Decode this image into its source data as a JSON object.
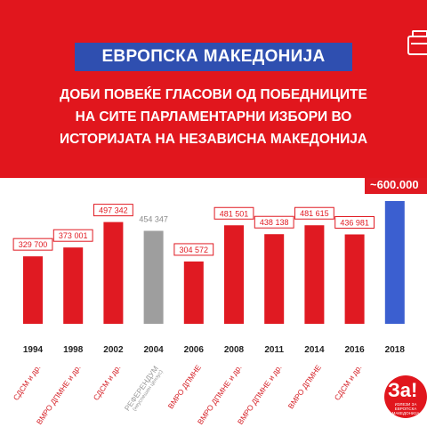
{
  "header": {
    "headline": "ЕВРОПСКА МАКЕДОНИЈА",
    "subtitle_lines": [
      "ДОБИ ПОВЕЌЕ ГЛАСОВИ ОД ПОБЕДНИЦИТЕ",
      "НА СИТЕ ПАРЛАМЕНТАРНИ ИЗБОРИ ВО",
      "ИСТОРИЈАТА НА НЕЗАВИСНА МАКЕДОНИЈА"
    ],
    "icon": "ballot-card-icon"
  },
  "colors": {
    "banner": "#e1161d",
    "headline_box": "#2f4fb0",
    "bar_red": "#e01a22",
    "bar_grey": "#9e9e9e",
    "bar_blue": "#3b5fd0"
  },
  "chart_data": {
    "type": "bar",
    "categories": [
      "1994",
      "1998",
      "2002",
      "2004",
      "2006",
      "2008",
      "2011",
      "2014",
      "2016",
      "2018"
    ],
    "values": [
      329700,
      373001,
      497342,
      454347,
      304572,
      481501,
      438138,
      481615,
      436981,
      600000
    ],
    "value_labels": [
      "329 700",
      "373 001",
      "497 342",
      "454 347",
      "304 572",
      "481 501",
      "438 138",
      "481 615",
      "436 981",
      "~600.000"
    ],
    "parties": [
      {
        "name": "СДСМ и др.",
        "note": ""
      },
      {
        "name": "ВМРО ДПМНЕ и др.",
        "note": ""
      },
      {
        "name": "СДСМ и др.",
        "note": ""
      },
      {
        "name": "РЕФЕРЕНДУМ",
        "note": "(неуспешен цензус)"
      },
      {
        "name": "ВМРО ДПМНЕ",
        "note": ""
      },
      {
        "name": "ВМРО ДПМНЕ и др.",
        "note": ""
      },
      {
        "name": "ВМРО ДПМНЕ и др.",
        "note": ""
      },
      {
        "name": "ВМРО ДПМНЕ",
        "note": ""
      },
      {
        "name": "СДСМ и др.",
        "note": ""
      },
      {
        "name": "",
        "note": ""
      }
    ],
    "bar_styles": [
      "red",
      "red",
      "red",
      "grey",
      "red",
      "red",
      "red",
      "red",
      "red",
      "blue"
    ],
    "ylim": [
      0,
      600000
    ],
    "grid": false,
    "title": "",
    "xlabel": "",
    "ylabel": ""
  },
  "logo": {
    "main": "За!",
    "caption": "ИЗЛЕЗИ ЗА ЕВРОПСКА МАКЕДОНИЈА"
  }
}
